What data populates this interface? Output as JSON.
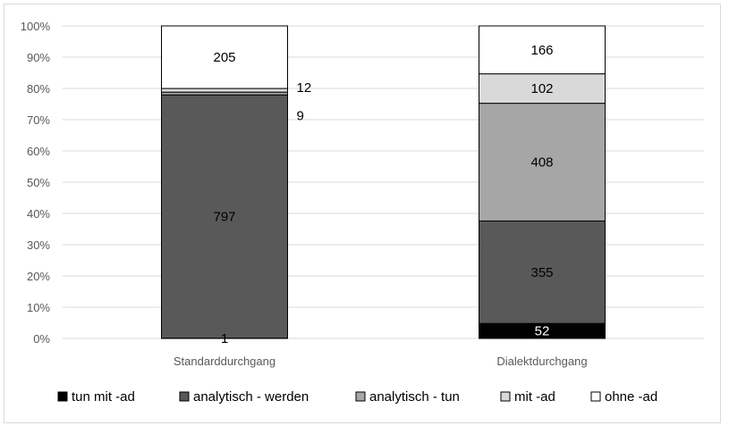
{
  "chart_data": {
    "type": "bar",
    "stacked": "percent",
    "categories": [
      "Standarddurchgang",
      "Dialektdurchgang"
    ],
    "series": [
      {
        "name": "tun mit -ad",
        "values": [
          1,
          52
        ],
        "color": "#000000"
      },
      {
        "name": "analytisch - werden",
        "values": [
          797,
          355
        ],
        "color": "#595959"
      },
      {
        "name": "analytisch - tun",
        "values": [
          9,
          408
        ],
        "color": "#a6a6a6"
      },
      {
        "name": "mit -ad",
        "values": [
          12,
          102
        ],
        "color": "#d9d9d9"
      },
      {
        "name": "ohne -ad",
        "values": [
          205,
          166
        ],
        "color": "#ffffff"
      }
    ],
    "y_ticks": [
      "0%",
      "10%",
      "20%",
      "30%",
      "40%",
      "50%",
      "60%",
      "70%",
      "80%",
      "90%",
      "100%"
    ],
    "ylim": [
      0,
      100
    ],
    "grid": true,
    "legend_position": "bottom"
  }
}
